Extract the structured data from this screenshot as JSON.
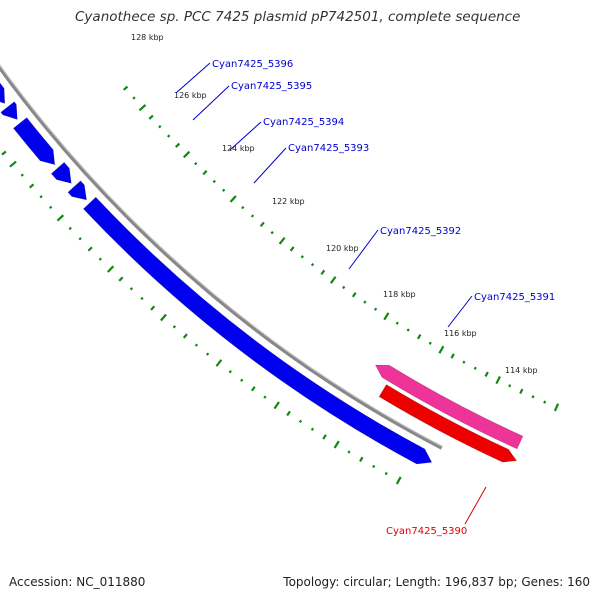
{
  "title": "Cyanothece sp. PCC 7425 plasmid pP742501, complete sequence",
  "footer": {
    "accession": "Accession: NC_011880",
    "summary": "Topology: circular; Length: 196,837 bp; Genes: 160"
  },
  "colors": {
    "forward_gene": "#0000ee",
    "highlight_gene": "#99ee33",
    "reverse_gene": "#ee0000",
    "reverse_gene_2": "#ee3399",
    "backbone": "#888888",
    "gc_dots": "#118811",
    "label_blue": "#0000cc",
    "label_red": "#dd0000"
  },
  "kbp_ticks": [
    {
      "label": "128 kbp"
    },
    {
      "label": "126 kbp"
    },
    {
      "label": "124 kbp"
    },
    {
      "label": "122 kbp"
    },
    {
      "label": "120 kbp"
    },
    {
      "label": "118 kbp"
    },
    {
      "label": "116 kbp"
    },
    {
      "label": "114 kbp"
    }
  ],
  "gene_labels": [
    {
      "text": "Cyan7425_5396",
      "strand": "forward"
    },
    {
      "text": "Cyan7425_5395",
      "strand": "forward"
    },
    {
      "text": "Cyan7425_5394",
      "strand": "forward"
    },
    {
      "text": "Cyan7425_5393",
      "strand": "forward"
    },
    {
      "text": "Cyan7425_5392",
      "strand": "forward"
    },
    {
      "text": "Cyan7425_5391",
      "strand": "forward"
    },
    {
      "text": "Cyan7425_5390",
      "strand": "reverse"
    }
  ]
}
